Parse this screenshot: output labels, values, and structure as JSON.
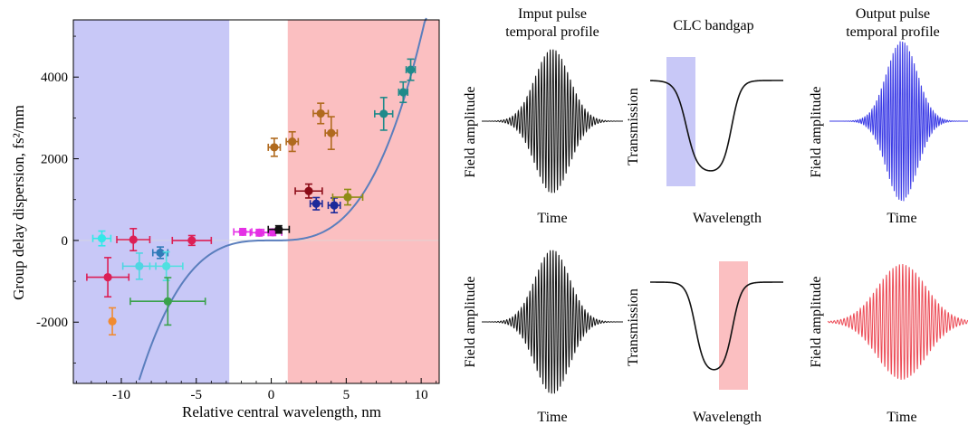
{
  "chart_data": [
    {
      "type": "scatter",
      "xlabel": "Relative central wavelength, nm",
      "ylabel": "Group delay dispersion, fs²/mm",
      "xlim": [
        -13.2,
        11.2
      ],
      "ylim": [
        -3500,
        5400
      ],
      "x_ticks": [
        -10,
        -5,
        0,
        5,
        10
      ],
      "y_ticks": [
        -2000,
        0,
        2000,
        4000
      ],
      "grid": false,
      "shaded_regions": [
        {
          "x0": -13.2,
          "x1": -2.8,
          "color": "#c8c8f7"
        },
        {
          "x0": 1.1,
          "x1": 11.2,
          "color": "#fbbfc1"
        }
      ],
      "curve": {
        "color": "#5a7ebd",
        "model": "cubic",
        "coefficient": 5.0
      },
      "points": [
        {
          "x": -11.3,
          "y": 50,
          "xerr": 0.6,
          "yerr": 180,
          "color": "#33e8e8"
        },
        {
          "x": -10.9,
          "y": -900,
          "xerr": 1.4,
          "yerr": 480,
          "color": "#dc1f55"
        },
        {
          "x": -10.6,
          "y": -1980,
          "xerr": 0,
          "yerr": 330,
          "color": "#f18b31"
        },
        {
          "x": -9.2,
          "y": 20,
          "xerr": 1.1,
          "yerr": 270,
          "color": "#dc1f55"
        },
        {
          "x": -8.8,
          "y": -630,
          "xerr": 1.1,
          "yerr": 320,
          "color": "#4fd6e2"
        },
        {
          "x": -7.4,
          "y": -300,
          "xerr": 0.5,
          "yerr": 140,
          "color": "#2f7ab8"
        },
        {
          "x": -7.0,
          "y": -630,
          "xerr": 1.1,
          "yerr": 350,
          "color": "#4fe0e0"
        },
        {
          "x": -6.9,
          "y": -1490,
          "xerr": 2.5,
          "yerr": 580,
          "color": "#3aa24b"
        },
        {
          "x": -5.3,
          "y": 0,
          "xerr": 1.3,
          "yerr": 120,
          "color": "#dc1f55"
        },
        {
          "x": -1.9,
          "y": 210,
          "xerr": 0.6,
          "yerr": 80,
          "color": "#e530e5"
        },
        {
          "x": -0.8,
          "y": 190,
          "xerr": 0.6,
          "yerr": 80,
          "color": "#e530e5"
        },
        {
          "x": 0.1,
          "y": 200,
          "xerr": 0.6,
          "yerr": 80,
          "color": "#e530e5"
        },
        {
          "x": 0.5,
          "y": 270,
          "xerr": 0.7,
          "yerr": 90,
          "color": "#111111"
        },
        {
          "x": 0.2,
          "y": 2280,
          "xerr": 0.4,
          "yerr": 220,
          "color": "#b06a1e"
        },
        {
          "x": 1.4,
          "y": 2420,
          "xerr": 0.4,
          "yerr": 240,
          "color": "#b06a1e"
        },
        {
          "x": 2.5,
          "y": 1210,
          "xerr": 0.9,
          "yerr": 170,
          "color": "#8b0b17"
        },
        {
          "x": 3.0,
          "y": 900,
          "xerr": 0.4,
          "yerr": 150,
          "color": "#1c2a9a"
        },
        {
          "x": 3.3,
          "y": 3110,
          "xerr": 0.5,
          "yerr": 250,
          "color": "#b06a1e"
        },
        {
          "x": 4.0,
          "y": 2630,
          "xerr": 0.4,
          "yerr": 400,
          "color": "#b06a1e"
        },
        {
          "x": 4.2,
          "y": 860,
          "xerr": 0.4,
          "yerr": 180,
          "color": "#1c2a9a"
        },
        {
          "x": 5.1,
          "y": 1060,
          "xerr": 1.0,
          "yerr": 190,
          "color": "#8f8c15"
        },
        {
          "x": 7.5,
          "y": 3100,
          "xerr": 0.6,
          "yerr": 400,
          "color": "#1f8a8a"
        },
        {
          "x": 8.8,
          "y": 3630,
          "xerr": 0.3,
          "yerr": 250,
          "color": "#1f8a8a"
        },
        {
          "x": 9.3,
          "y": 4180,
          "xerr": 0.3,
          "yerr": 260,
          "color": "#1f8a8a"
        }
      ]
    },
    {
      "type": "line",
      "title": "Imput pulse temporal profile",
      "title_lines": [
        "Imput pulse",
        "temporal profile"
      ],
      "xlabel": "Time",
      "ylabel": "Field amplitude",
      "color": "#111111"
    },
    {
      "type": "line",
      "title": "CLC bandgap",
      "xlabel": "Wavelength",
      "ylabel": "Transmission",
      "color": "#111111",
      "highlight_color": "#c8c8f7",
      "highlight_side": "short-wavelength edge"
    },
    {
      "type": "line",
      "title": "Output pulse temporal profile",
      "title_lines": [
        "Output pulse",
        "temporal profile"
      ],
      "xlabel": "Time",
      "ylabel": "Field amplitude",
      "color": "#3b3be6"
    },
    {
      "type": "line",
      "xlabel": "Time",
      "ylabel": "Field amplitude",
      "color": "#111111"
    },
    {
      "type": "line",
      "xlabel": "Wavelength",
      "ylabel": "Transmission",
      "color": "#111111",
      "highlight_color": "#fbbfc1",
      "highlight_side": "long-wavelength edge"
    },
    {
      "type": "line",
      "xlabel": "Time",
      "ylabel": "Field amplitude",
      "color": "#ec4a55"
    }
  ]
}
